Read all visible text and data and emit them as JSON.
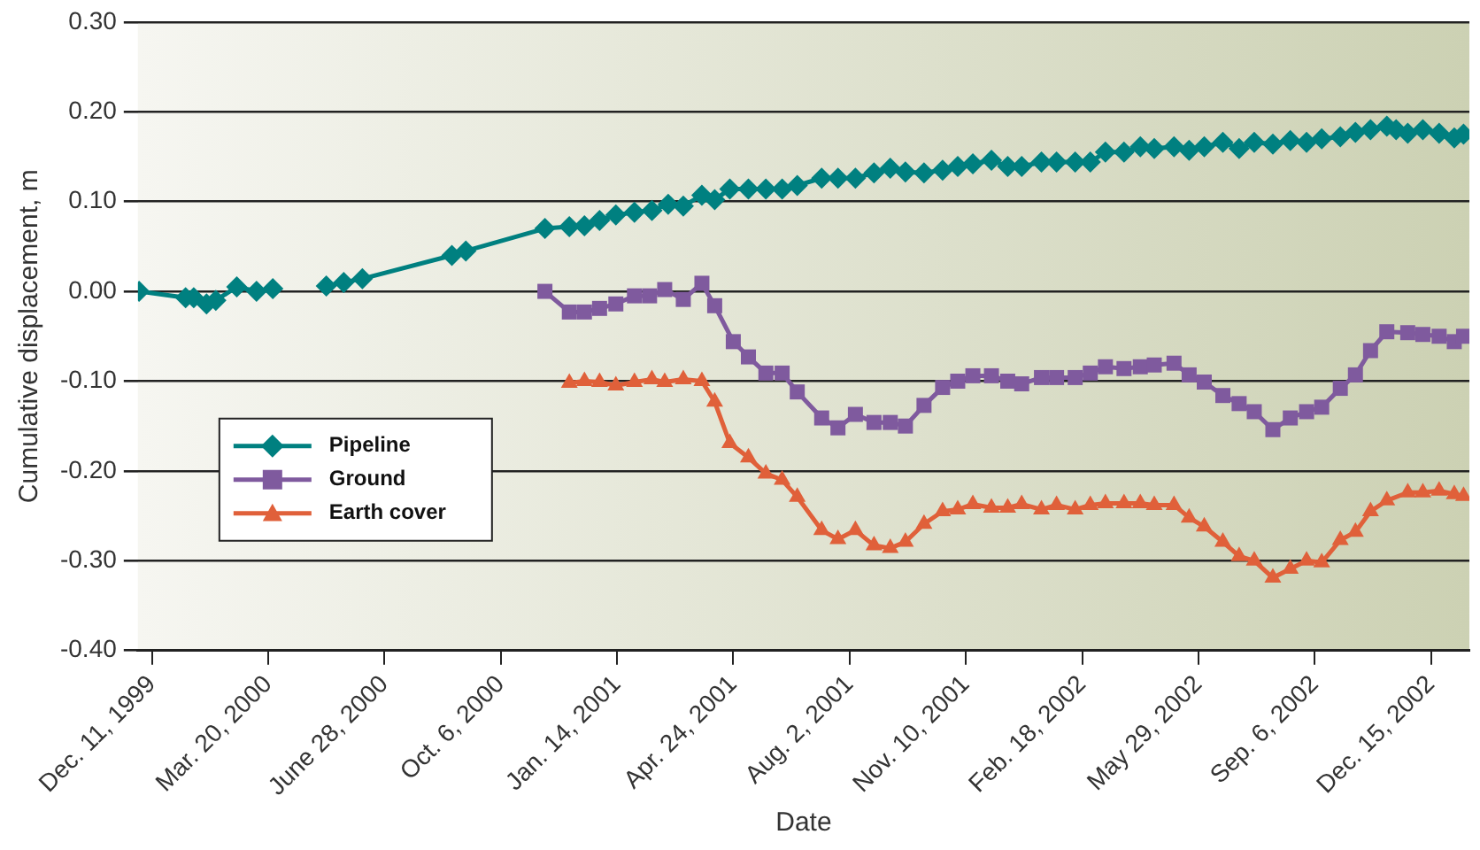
{
  "chart_data": {
    "type": "line",
    "xlabel": "Date",
    "ylabel": "Cumulative displacement, m",
    "xlim": [
      "1999-11-29",
      "2003-01-17"
    ],
    "xticks": [
      {
        "value": "1999-12-11",
        "label": "Dec. 11, 1999"
      },
      {
        "value": "2000-03-20",
        "label": "Mar. 20, 2000"
      },
      {
        "value": "2000-06-28",
        "label": "June 28, 2000"
      },
      {
        "value": "2000-10-06",
        "label": "Oct. 6, 2000"
      },
      {
        "value": "2001-01-14",
        "label": "Jan. 14, 2001"
      },
      {
        "value": "2001-04-24",
        "label": "Apr. 24, 2001"
      },
      {
        "value": "2001-08-02",
        "label": "Aug. 2, 2001"
      },
      {
        "value": "2001-11-10",
        "label": "Nov. 10, 2001"
      },
      {
        "value": "2002-02-18",
        "label": "Feb. 18, 2002"
      },
      {
        "value": "2002-05-29",
        "label": "May 29, 2002"
      },
      {
        "value": "2002-09-06",
        "label": "Sep. 6, 2002"
      },
      {
        "value": "2002-12-15",
        "label": "Dec. 15, 2002"
      }
    ],
    "ylim": [
      -0.4,
      0.3
    ],
    "yticks": [
      {
        "value": -0.4,
        "label": "-0.40"
      },
      {
        "value": -0.3,
        "label": "-0.30"
      },
      {
        "value": -0.2,
        "label": "-0.20"
      },
      {
        "value": -0.1,
        "label": "-0.10"
      },
      {
        "value": 0,
        "label": "0.00"
      },
      {
        "value": 0.1,
        "label": "0.10"
      },
      {
        "value": 0.2,
        "label": "0.20"
      },
      {
        "value": 0.3,
        "label": "0.30"
      }
    ],
    "grid": "y",
    "legend": "bottom left",
    "line_style": "solid",
    "series": [
      {
        "name": "Pipeline",
        "color": "#008080",
        "marker": "diamond",
        "x": [
          "1999-11-30",
          "2000-01-09",
          "2000-01-16",
          "2000-01-27",
          "2000-02-04",
          "2000-02-22",
          "2000-03-10",
          "2000-03-24",
          "2000-04-15",
          "2000-05-09",
          "2000-05-24",
          "2000-06-09",
          "2000-08-25",
          "2000-09-06",
          "2000-11-13",
          "2000-12-04",
          "2000-12-17",
          "2000-12-30",
          "2001-01-13",
          "2001-01-29",
          "2001-02-13",
          "2001-02-27",
          "2001-03-12",
          "2001-03-28",
          "2001-04-08",
          "2001-04-21",
          "2001-05-07",
          "2001-05-22",
          "2001-06-05",
          "2001-06-18",
          "2001-07-09",
          "2001-07-23",
          "2001-08-07",
          "2001-08-23",
          "2001-09-06",
          "2001-09-19",
          "2001-10-05",
          "2001-10-21",
          "2001-11-03",
          "2001-11-16",
          "2001-12-02",
          "2001-12-16",
          "2001-12-28",
          "2002-01-14",
          "2002-01-27",
          "2002-02-12",
          "2002-02-25",
          "2002-03-10",
          "2002-03-26",
          "2002-04-09",
          "2002-04-21",
          "2002-05-08",
          "2002-05-21",
          "2002-06-03",
          "2002-06-19",
          "2002-07-03",
          "2002-07-16",
          "2002-08-01",
          "2002-08-16",
          "2002-08-30",
          "2002-09-12",
          "2002-09-28",
          "2002-10-11",
          "2002-10-24",
          "2002-11-07",
          "2002-11-15",
          "2002-11-25",
          "2002-12-08",
          "2002-12-22",
          "2003-01-04",
          "2003-01-12"
        ],
        "values": [
          0.0,
          -0.007,
          -0.007,
          -0.014,
          -0.01,
          0.005,
          0.0,
          0.003,
          null,
          0.006,
          0.01,
          0.014,
          0.04,
          0.045,
          0.07,
          0.072,
          0.073,
          0.079,
          0.085,
          0.088,
          0.09,
          0.097,
          0.095,
          0.107,
          0.102,
          0.114,
          0.114,
          0.114,
          0.114,
          0.118,
          0.126,
          0.126,
          0.126,
          0.132,
          0.137,
          0.133,
          0.132,
          0.135,
          0.139,
          0.142,
          0.146,
          0.139,
          0.139,
          0.144,
          0.144,
          0.144,
          0.144,
          0.155,
          0.155,
          0.161,
          0.159,
          0.161,
          0.157,
          0.161,
          0.166,
          0.159,
          0.166,
          0.164,
          0.168,
          0.166,
          0.17,
          0.172,
          0.177,
          0.18,
          0.184,
          0.18,
          0.176,
          0.18,
          0.176,
          0.171,
          0.175
        ]
      },
      {
        "name": "Ground",
        "color": "#7f5a9e",
        "marker": "square",
        "x": [
          "2000-11-13",
          "2000-12-04",
          "2000-12-17",
          "2000-12-30",
          "2001-01-13",
          "2001-01-29",
          "2001-02-11",
          "2001-02-24",
          "2001-03-12",
          "2001-03-28",
          "2001-04-08",
          "2001-04-24",
          "2001-05-07",
          "2001-05-22",
          "2001-06-05",
          "2001-06-18",
          "2001-07-09",
          "2001-07-23",
          "2001-08-07",
          "2001-08-23",
          "2001-09-06",
          "2001-09-19",
          "2001-10-05",
          "2001-10-21",
          "2001-11-03",
          "2001-11-16",
          "2001-12-02",
          "2001-12-16",
          "2001-12-28",
          "2002-01-14",
          "2002-01-27",
          "2002-02-12",
          "2002-02-25",
          "2002-03-10",
          "2002-03-26",
          "2002-04-09",
          "2002-04-21",
          "2002-05-08",
          "2002-05-21",
          "2002-06-03",
          "2002-06-19",
          "2002-07-03",
          "2002-07-16",
          "2002-08-01",
          "2002-08-16",
          "2002-08-30",
          "2002-09-12",
          "2002-09-28",
          "2002-10-11",
          "2002-10-24",
          "2002-11-07",
          "2002-11-25",
          "2002-12-08",
          "2002-12-22",
          "2003-01-04",
          "2003-01-12"
        ],
        "values": [
          0.0,
          -0.023,
          -0.023,
          -0.019,
          -0.014,
          -0.005,
          -0.005,
          0.002,
          -0.009,
          0.009,
          -0.016,
          -0.056,
          -0.073,
          -0.091,
          -0.091,
          -0.112,
          -0.141,
          -0.152,
          -0.137,
          -0.146,
          -0.146,
          -0.15,
          -0.127,
          -0.107,
          -0.1,
          -0.094,
          -0.094,
          -0.1,
          -0.103,
          -0.096,
          -0.096,
          -0.096,
          -0.091,
          -0.084,
          -0.086,
          -0.084,
          -0.082,
          -0.08,
          -0.093,
          -0.101,
          -0.116,
          -0.125,
          -0.134,
          -0.154,
          -0.141,
          -0.134,
          -0.129,
          -0.108,
          -0.093,
          -0.066,
          -0.045,
          -0.046,
          -0.048,
          -0.05,
          -0.056,
          -0.05
        ]
      },
      {
        "name": "Earth cover",
        "color": "#e0603a",
        "marker": "triangle",
        "x": [
          "2000-12-04",
          "2000-12-17",
          "2000-12-30",
          "2001-01-13",
          "2001-01-29",
          "2001-02-13",
          "2001-02-24",
          "2001-03-12",
          "2001-03-28",
          "2001-04-08",
          "2001-04-21",
          "2001-05-07",
          "2001-05-22",
          "2001-06-05",
          "2001-06-18",
          "2001-07-09",
          "2001-07-23",
          "2001-08-07",
          "2001-08-23",
          "2001-09-06",
          "2001-09-19",
          "2001-10-05",
          "2001-10-21",
          "2001-11-03",
          "2001-11-16",
          "2001-12-02",
          "2001-12-16",
          "2001-12-28",
          "2002-01-14",
          "2002-01-27",
          "2002-02-12",
          "2002-02-25",
          "2002-03-10",
          "2002-03-26",
          "2002-04-09",
          "2002-04-21",
          "2002-05-08",
          "2002-05-21",
          "2002-06-03",
          "2002-06-19",
          "2002-07-03",
          "2002-07-16",
          "2002-08-01",
          "2002-08-16",
          "2002-08-30",
          "2002-09-12",
          "2002-09-28",
          "2002-10-11",
          "2002-10-24",
          "2002-11-07",
          "2002-11-25",
          "2002-12-08",
          "2002-12-22",
          "2003-01-04",
          "2003-01-12"
        ],
        "values": [
          -0.102,
          -0.1,
          -0.101,
          -0.105,
          -0.101,
          -0.098,
          -0.101,
          -0.098,
          -0.1,
          -0.123,
          -0.169,
          -0.185,
          -0.203,
          -0.21,
          -0.229,
          -0.266,
          -0.276,
          -0.266,
          -0.283,
          -0.286,
          -0.279,
          -0.259,
          -0.245,
          -0.243,
          -0.237,
          -0.241,
          -0.241,
          -0.237,
          -0.243,
          -0.238,
          -0.243,
          -0.238,
          -0.236,
          -0.236,
          -0.236,
          -0.238,
          -0.238,
          -0.252,
          -0.262,
          -0.279,
          -0.295,
          -0.3,
          -0.319,
          -0.309,
          -0.3,
          -0.302,
          -0.277,
          -0.268,
          -0.245,
          -0.233,
          -0.224,
          -0.224,
          -0.222,
          -0.226,
          -0.228
        ]
      }
    ]
  }
}
